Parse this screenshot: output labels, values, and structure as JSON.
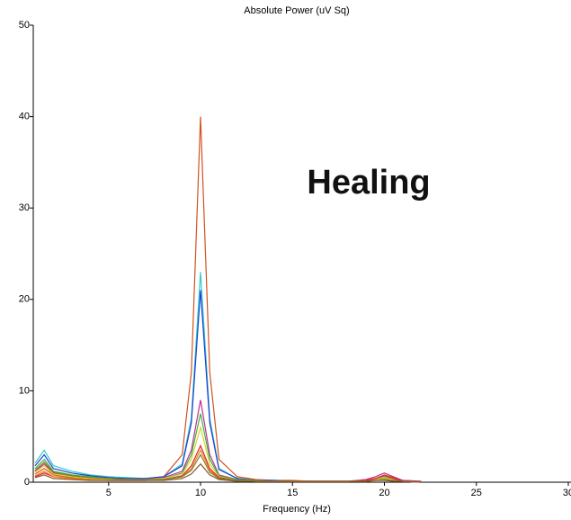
{
  "chart_data": {
    "type": "line",
    "title": "Absolute Power (uV Sq)",
    "x_label": "Frequency (Hz)",
    "annotation": "Healing",
    "x": [
      1,
      1.5,
      2,
      3,
      4,
      5,
      6,
      7,
      8,
      9,
      9.5,
      10,
      10.5,
      11,
      12,
      13,
      14,
      15,
      16,
      17,
      18,
      19,
      19.5,
      20,
      20.5,
      21,
      22
    ],
    "series": [
      {
        "color": "#d2521e",
        "values": [
          0.9,
          1.5,
          0.8,
          0.5,
          0.4,
          0.3,
          0.3,
          0.3,
          0.6,
          3,
          12,
          40,
          12,
          2.5,
          0.6,
          0.3,
          0.2,
          0.2,
          0.1,
          0.1,
          0.1,
          0.2,
          0.4,
          0.8,
          0.5,
          0.2,
          0.1
        ]
      },
      {
        "color": "#33cccc",
        "values": [
          2.1,
          3.5,
          1.8,
          1.2,
          0.8,
          0.6,
          0.5,
          0.4,
          0.6,
          2,
          7,
          23,
          7,
          1.5,
          0.4,
          0.2,
          0.2,
          0.1,
          0.1,
          0.1,
          0.1,
          0.2,
          0.3,
          0.5,
          0.3,
          0.1,
          0
        ]
      },
      {
        "color": "#1f3fd0",
        "values": [
          1.8,
          3,
          1.5,
          1,
          0.7,
          0.5,
          0.4,
          0.4,
          0.6,
          1.8,
          6.5,
          21,
          6.5,
          1.4,
          0.4,
          0.2,
          0.2,
          0.1,
          0.1,
          0.1,
          0.1,
          0.2,
          0.3,
          0.4,
          0.3,
          0.1,
          0
        ]
      },
      {
        "color": "#c0308f",
        "values": [
          1.2,
          2,
          1,
          0.7,
          0.5,
          0.4,
          0.3,
          0.3,
          0.5,
          1.2,
          3.5,
          9,
          3,
          0.8,
          0.3,
          0.2,
          0.1,
          0.1,
          0.1,
          0.1,
          0.1,
          0.3,
          0.6,
          1,
          0.6,
          0.2,
          0.1
        ]
      },
      {
        "color": "#40b040",
        "values": [
          1.5,
          2.5,
          1.2,
          0.8,
          0.6,
          0.4,
          0.3,
          0.3,
          0.4,
          1,
          3,
          7.5,
          2.5,
          0.7,
          0.3,
          0.2,
          0.1,
          0.1,
          0.1,
          0.1,
          0.1,
          0.2,
          0.3,
          0.5,
          0.3,
          0.1,
          0
        ]
      },
      {
        "color": "#d4d42a",
        "values": [
          1.1,
          1.8,
          0.9,
          0.6,
          0.4,
          0.3,
          0.3,
          0.3,
          0.4,
          0.9,
          2.5,
          6,
          2,
          0.6,
          0.2,
          0.1,
          0.1,
          0.1,
          0.1,
          0.1,
          0.1,
          0.2,
          0.3,
          0.4,
          0.3,
          0.1,
          0
        ]
      },
      {
        "color": "#e02020",
        "values": [
          0.6,
          1,
          0.6,
          0.4,
          0.3,
          0.2,
          0.2,
          0.2,
          0.3,
          0.7,
          1.8,
          4,
          1.5,
          0.5,
          0.2,
          0.1,
          0.1,
          0.1,
          0.1,
          0.1,
          0.1,
          0.2,
          0.4,
          0.7,
          0.4,
          0.1,
          0
        ]
      },
      {
        "color": "#f08020",
        "values": [
          0.7,
          1.2,
          0.6,
          0.4,
          0.3,
          0.2,
          0.2,
          0.2,
          0.3,
          0.6,
          1.5,
          3.5,
          1.3,
          0.4,
          0.2,
          0.1,
          0.1,
          0.1,
          0.1,
          0.1,
          0.1,
          0.1,
          0.2,
          0.3,
          0.2,
          0.1,
          0
        ]
      },
      {
        "color": "#808030",
        "values": [
          1.3,
          2.2,
          1.1,
          0.7,
          0.5,
          0.4,
          0.3,
          0.3,
          0.3,
          0.6,
          1.3,
          3,
          1.1,
          0.4,
          0.2,
          0.1,
          0.1,
          0.1,
          0.1,
          0.1,
          0.1,
          0.1,
          0.2,
          0.3,
          0.2,
          0.1,
          0
        ]
      },
      {
        "color": "#8b5a2b",
        "values": [
          0.5,
          0.8,
          0.4,
          0.3,
          0.2,
          0.2,
          0.2,
          0.2,
          0.2,
          0.4,
          0.9,
          2,
          0.8,
          0.3,
          0.1,
          0.1,
          0.1,
          0.1,
          0.1,
          0.1,
          0.1,
          0.1,
          0.2,
          0.2,
          0.1,
          0.1,
          0
        ]
      }
    ],
    "xlim": [
      1,
      30
    ],
    "xticks": [
      5,
      10,
      15,
      20,
      25,
      30
    ],
    "ylim": [
      0,
      50
    ],
    "yticks": [
      0,
      10,
      20,
      30,
      40,
      50
    ],
    "grid": false
  }
}
